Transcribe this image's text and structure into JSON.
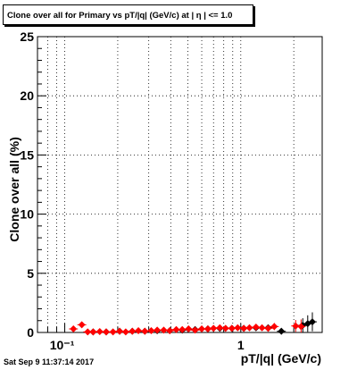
{
  "chart_data": {
    "type": "scatter",
    "title": "Clone  over all for Primary vs pT/|q| (GeV/c) at |  η | <= 1.0",
    "xlabel": "pT/|q| (GeV/c)",
    "ylabel": "Clone  over all (%)",
    "xscale": "log",
    "xlim": [
      0.07,
      2.9
    ],
    "ylim": [
      0,
      25
    ],
    "grid": true,
    "x_tick_labels": [
      "10⁻¹",
      "1"
    ],
    "y_tick_labels": [
      "0",
      "5",
      "10",
      "15",
      "20",
      "25"
    ],
    "series": [
      {
        "color": "#ff0000",
        "x": [
          0.112,
          0.125,
          0.135,
          0.145,
          0.158,
          0.172,
          0.188,
          0.205,
          0.222,
          0.242,
          0.262,
          0.285,
          0.31,
          0.335,
          0.365,
          0.395,
          0.43,
          0.465,
          0.505,
          0.55,
          0.6,
          0.65,
          0.7,
          0.76,
          0.82,
          0.89,
          0.96,
          1.04,
          1.12,
          1.22,
          1.32,
          1.43,
          1.55,
          2.05,
          2.2
        ],
        "y": [
          0.3,
          0.65,
          0.05,
          0.05,
          0.08,
          0.05,
          0.05,
          0.1,
          0.05,
          0.1,
          0.15,
          0.1,
          0.15,
          0.2,
          0.2,
          0.15,
          0.25,
          0.25,
          0.3,
          0.2,
          0.3,
          0.3,
          0.35,
          0.4,
          0.35,
          0.35,
          0.4,
          0.35,
          0.4,
          0.45,
          0.4,
          0.35,
          0.5,
          0.55,
          0.5
        ],
        "yerr": [
          0.1,
          0.15,
          0.1,
          0.1,
          0.1,
          0.1,
          0.1,
          0.1,
          0.1,
          0.1,
          0.1,
          0.1,
          0.1,
          0.1,
          0.1,
          0.1,
          0.1,
          0.1,
          0.1,
          0.1,
          0.1,
          0.15,
          0.15,
          0.15,
          0.15,
          0.15,
          0.2,
          0.2,
          0.2,
          0.2,
          0.25,
          0.25,
          0.3,
          0.5,
          0.6
        ]
      },
      {
        "color": "#000000",
        "x": [
          0.145,
          0.172,
          0.205,
          0.242,
          0.285,
          0.335,
          0.395,
          0.465,
          0.55,
          0.65,
          0.76,
          0.89,
          1.04,
          1.22,
          1.43,
          1.7,
          2.25,
          2.4,
          2.55
        ],
        "y": [
          0.05,
          0.05,
          0.1,
          0.1,
          0.1,
          0.15,
          0.15,
          0.2,
          0.25,
          0.3,
          0.35,
          0.35,
          0.35,
          0.4,
          0.4,
          0.1,
          0.6,
          0.75,
          0.9
        ],
        "yerr": [
          0.1,
          0.1,
          0.1,
          0.1,
          0.1,
          0.1,
          0.1,
          0.1,
          0.1,
          0.15,
          0.15,
          0.2,
          0.2,
          0.2,
          0.25,
          0.15,
          0.6,
          0.7,
          0.8
        ]
      }
    ]
  },
  "footer": {
    "timestamp": "Sat Sep  9 11:37:14 2017"
  }
}
